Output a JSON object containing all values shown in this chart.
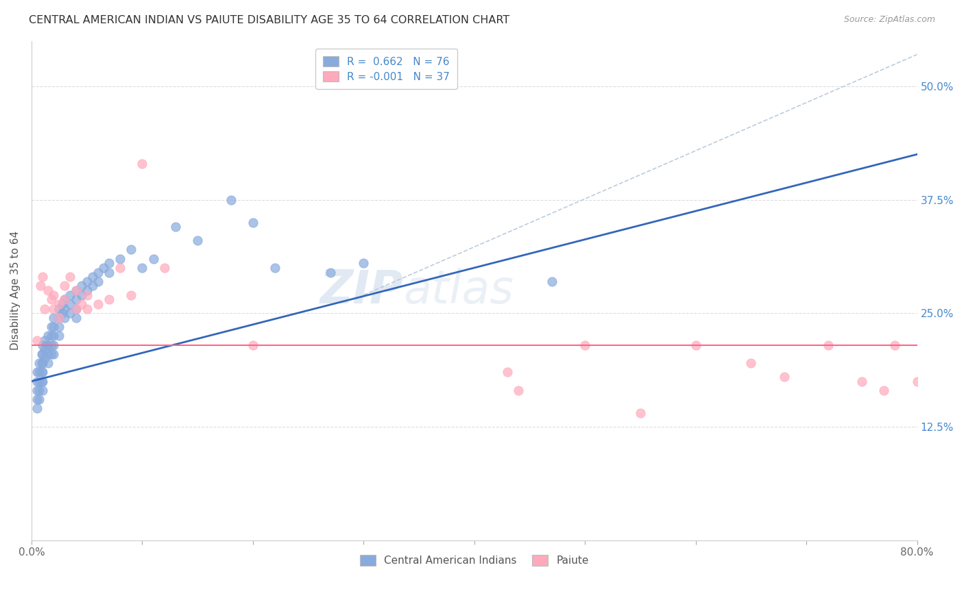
{
  "title": "CENTRAL AMERICAN INDIAN VS PAIUTE DISABILITY AGE 35 TO 64 CORRELATION CHART",
  "source": "Source: ZipAtlas.com",
  "ylabel": "Disability Age 35 to 64",
  "x_min": 0.0,
  "x_max": 0.8,
  "y_min": 0.0,
  "y_max": 0.55,
  "x_ticks": [
    0.0,
    0.1,
    0.2,
    0.3,
    0.4,
    0.5,
    0.6,
    0.7,
    0.8
  ],
  "x_tick_labels": [
    "0.0%",
    "",
    "",
    "",
    "",
    "",
    "",
    "",
    "80.0%"
  ],
  "y_ticks": [
    0.125,
    0.25,
    0.375,
    0.5
  ],
  "y_tick_labels": [
    "12.5%",
    "25.0%",
    "37.5%",
    "50.0%"
  ],
  "legend_line1": "R =  0.662   N = 76",
  "legend_line2": "R = -0.001   N = 37",
  "color_blue": "#88AADD",
  "color_pink": "#FFAABC",
  "color_blue_line": "#3366BB",
  "color_pink_line": "#FF6688",
  "color_dashed": "#BBCCDD",
  "watermark_zip": "ZIP",
  "watermark_atlas": "atlas",
  "legend_label1": "Central American Indians",
  "legend_label2": "Paiute",
  "blue_line_x0": 0.0,
  "blue_line_y0": 0.175,
  "blue_line_x1": 0.8,
  "blue_line_y1": 0.425,
  "pink_line_y": 0.215,
  "dashed_line_x0": 0.3,
  "dashed_line_y0": 0.27,
  "dashed_line_x1": 0.8,
  "dashed_line_y1": 0.535,
  "blue_x": [
    0.005,
    0.005,
    0.005,
    0.005,
    0.005,
    0.007,
    0.007,
    0.007,
    0.007,
    0.007,
    0.009,
    0.009,
    0.009,
    0.009,
    0.01,
    0.01,
    0.01,
    0.01,
    0.01,
    0.01,
    0.012,
    0.012,
    0.012,
    0.014,
    0.015,
    0.015,
    0.015,
    0.015,
    0.018,
    0.018,
    0.018,
    0.018,
    0.02,
    0.02,
    0.02,
    0.02,
    0.02,
    0.025,
    0.025,
    0.025,
    0.025,
    0.028,
    0.028,
    0.03,
    0.03,
    0.03,
    0.035,
    0.035,
    0.035,
    0.04,
    0.04,
    0.04,
    0.04,
    0.045,
    0.045,
    0.05,
    0.05,
    0.055,
    0.055,
    0.06,
    0.06,
    0.065,
    0.07,
    0.07,
    0.08,
    0.09,
    0.1,
    0.11,
    0.13,
    0.15,
    0.18,
    0.2,
    0.22,
    0.27,
    0.3,
    0.47
  ],
  "blue_y": [
    0.185,
    0.175,
    0.165,
    0.155,
    0.145,
    0.195,
    0.185,
    0.175,
    0.165,
    0.155,
    0.205,
    0.195,
    0.185,
    0.175,
    0.215,
    0.205,
    0.195,
    0.185,
    0.175,
    0.165,
    0.22,
    0.21,
    0.2,
    0.215,
    0.225,
    0.215,
    0.205,
    0.195,
    0.235,
    0.225,
    0.215,
    0.205,
    0.245,
    0.235,
    0.225,
    0.215,
    0.205,
    0.255,
    0.245,
    0.235,
    0.225,
    0.26,
    0.25,
    0.265,
    0.255,
    0.245,
    0.27,
    0.26,
    0.25,
    0.275,
    0.265,
    0.255,
    0.245,
    0.28,
    0.27,
    0.285,
    0.275,
    0.29,
    0.28,
    0.295,
    0.285,
    0.3,
    0.305,
    0.295,
    0.31,
    0.32,
    0.3,
    0.31,
    0.345,
    0.33,
    0.375,
    0.35,
    0.3,
    0.295,
    0.305,
    0.285
  ],
  "pink_x": [
    0.005,
    0.008,
    0.01,
    0.012,
    0.015,
    0.018,
    0.02,
    0.02,
    0.025,
    0.025,
    0.03,
    0.03,
    0.035,
    0.04,
    0.04,
    0.045,
    0.05,
    0.05,
    0.06,
    0.07,
    0.08,
    0.09,
    0.1,
    0.12,
    0.2,
    0.43,
    0.44,
    0.5,
    0.55,
    0.6,
    0.65,
    0.68,
    0.72,
    0.75,
    0.77,
    0.78,
    0.8
  ],
  "pink_y": [
    0.22,
    0.28,
    0.29,
    0.255,
    0.275,
    0.265,
    0.27,
    0.255,
    0.245,
    0.26,
    0.28,
    0.265,
    0.29,
    0.275,
    0.255,
    0.26,
    0.27,
    0.255,
    0.26,
    0.265,
    0.3,
    0.27,
    0.415,
    0.3,
    0.215,
    0.185,
    0.165,
    0.215,
    0.14,
    0.215,
    0.195,
    0.18,
    0.215,
    0.175,
    0.165,
    0.215,
    0.175
  ]
}
